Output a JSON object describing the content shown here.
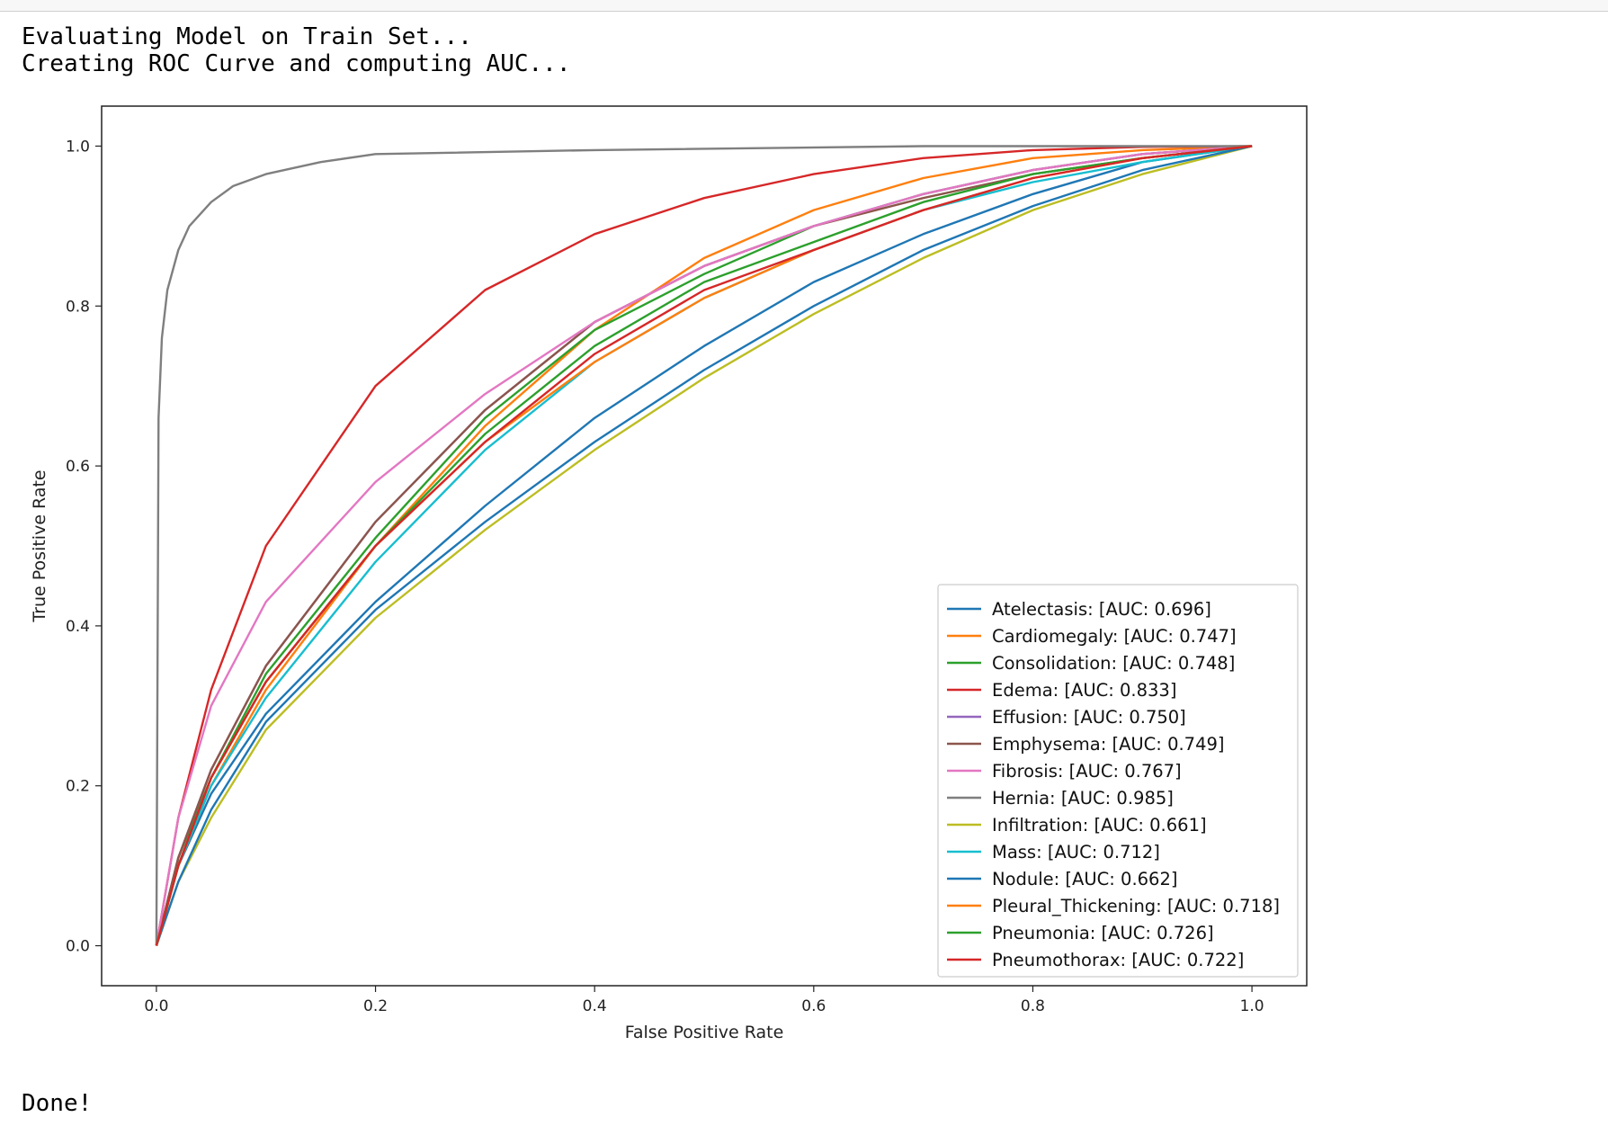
{
  "output": {
    "line1": "Evaluating Model on Train Set...",
    "line2": "Creating ROC Curve and computing AUC...",
    "done": "Done!"
  },
  "chart_data": {
    "type": "line",
    "title": "",
    "xlabel": "False Positive Rate",
    "ylabel": "True Positive Rate",
    "xlim": [
      -0.05,
      1.05
    ],
    "ylim": [
      -0.05,
      1.05
    ],
    "xticks": [
      "0.0",
      "0.2",
      "0.4",
      "0.6",
      "0.8",
      "1.0"
    ],
    "yticks": [
      "0.0",
      "0.2",
      "0.4",
      "0.6",
      "0.8",
      "1.0"
    ],
    "grid": false,
    "legend_position": "lower-right",
    "series": [
      {
        "name": "Atelectasis: [AUC: 0.696]",
        "color": "#1f77b4",
        "x": [
          0,
          0.02,
          0.05,
          0.1,
          0.2,
          0.3,
          0.4,
          0.5,
          0.6,
          0.7,
          0.8,
          0.9,
          1.0
        ],
        "y": [
          0,
          0.1,
          0.19,
          0.29,
          0.43,
          0.55,
          0.66,
          0.75,
          0.83,
          0.89,
          0.94,
          0.98,
          1.0
        ]
      },
      {
        "name": "Cardiomegaly: [AUC: 0.747]",
        "color": "#ff7f0e",
        "x": [
          0,
          0.02,
          0.05,
          0.1,
          0.2,
          0.3,
          0.4,
          0.5,
          0.6,
          0.7,
          0.8,
          0.9,
          1.0
        ],
        "y": [
          0,
          0.1,
          0.2,
          0.32,
          0.5,
          0.65,
          0.77,
          0.86,
          0.92,
          0.96,
          0.985,
          0.995,
          1.0
        ]
      },
      {
        "name": "Consolidation: [AUC: 0.748]",
        "color": "#2ca02c",
        "x": [
          0,
          0.02,
          0.05,
          0.1,
          0.2,
          0.3,
          0.4,
          0.5,
          0.6,
          0.7,
          0.8,
          0.9,
          1.0
        ],
        "y": [
          0,
          0.11,
          0.21,
          0.34,
          0.51,
          0.66,
          0.77,
          0.84,
          0.9,
          0.94,
          0.97,
          0.99,
          1.0
        ]
      },
      {
        "name": "Edema: [AUC: 0.833]",
        "color": "#d62728",
        "x": [
          0,
          0.02,
          0.05,
          0.1,
          0.15,
          0.2,
          0.3,
          0.4,
          0.5,
          0.6,
          0.7,
          0.8,
          0.9,
          1.0
        ],
        "y": [
          0,
          0.16,
          0.32,
          0.5,
          0.6,
          0.7,
          0.82,
          0.89,
          0.935,
          0.965,
          0.985,
          0.995,
          0.999,
          1.0
        ]
      },
      {
        "name": "Effusion: [AUC: 0.750]",
        "color": "#9467bd",
        "x": [
          0,
          0.02,
          0.05,
          0.1,
          0.2,
          0.3,
          0.4,
          0.5,
          0.6,
          0.7,
          0.8,
          0.9,
          1.0
        ],
        "y": [
          0,
          0.11,
          0.22,
          0.35,
          0.53,
          0.67,
          0.78,
          0.85,
          0.9,
          0.94,
          0.97,
          0.99,
          1.0
        ]
      },
      {
        "name": "Emphysema: [AUC: 0.749]",
        "color": "#8c564b",
        "x": [
          0,
          0.02,
          0.05,
          0.1,
          0.2,
          0.3,
          0.4,
          0.5,
          0.6,
          0.7,
          0.8,
          0.9,
          1.0
        ],
        "y": [
          0,
          0.11,
          0.22,
          0.35,
          0.53,
          0.67,
          0.78,
          0.85,
          0.9,
          0.935,
          0.965,
          0.985,
          1.0
        ]
      },
      {
        "name": "Fibrosis: [AUC: 0.767]",
        "color": "#e377c2",
        "x": [
          0,
          0.02,
          0.05,
          0.1,
          0.2,
          0.3,
          0.4,
          0.5,
          0.6,
          0.7,
          0.8,
          0.9,
          1.0
        ],
        "y": [
          0,
          0.16,
          0.3,
          0.43,
          0.58,
          0.69,
          0.78,
          0.85,
          0.9,
          0.94,
          0.97,
          0.99,
          1.0
        ]
      },
      {
        "name": "Hernia: [AUC: 0.985]",
        "color": "#7f7f7f",
        "x": [
          0,
          0.002,
          0.005,
          0.01,
          0.02,
          0.03,
          0.05,
          0.07,
          0.1,
          0.15,
          0.2,
          0.4,
          0.7,
          1.0
        ],
        "y": [
          0,
          0.66,
          0.76,
          0.82,
          0.87,
          0.9,
          0.93,
          0.95,
          0.965,
          0.98,
          0.99,
          0.995,
          1.0,
          1.0
        ]
      },
      {
        "name": "Infiltration: [AUC: 0.661]",
        "color": "#bcbd22",
        "x": [
          0,
          0.02,
          0.05,
          0.1,
          0.2,
          0.3,
          0.4,
          0.5,
          0.6,
          0.7,
          0.8,
          0.9,
          1.0
        ],
        "y": [
          0,
          0.08,
          0.16,
          0.27,
          0.41,
          0.52,
          0.62,
          0.71,
          0.79,
          0.86,
          0.92,
          0.965,
          1.0
        ]
      },
      {
        "name": "Mass: [AUC: 0.712]",
        "color": "#17becf",
        "x": [
          0,
          0.02,
          0.05,
          0.1,
          0.2,
          0.3,
          0.4,
          0.5,
          0.6,
          0.7,
          0.8,
          0.9,
          1.0
        ],
        "y": [
          0,
          0.1,
          0.2,
          0.31,
          0.48,
          0.62,
          0.73,
          0.81,
          0.87,
          0.92,
          0.955,
          0.98,
          1.0
        ]
      },
      {
        "name": "Nodule: [AUC: 0.662]",
        "color": "#1f77b4",
        "x": [
          0,
          0.02,
          0.05,
          0.1,
          0.2,
          0.3,
          0.4,
          0.5,
          0.6,
          0.7,
          0.8,
          0.9,
          1.0
        ],
        "y": [
          0,
          0.08,
          0.17,
          0.28,
          0.42,
          0.53,
          0.63,
          0.72,
          0.8,
          0.87,
          0.925,
          0.97,
          1.0
        ]
      },
      {
        "name": "Pleural_Thickening: [AUC: 0.718]",
        "color": "#ff7f0e",
        "x": [
          0,
          0.02,
          0.05,
          0.1,
          0.2,
          0.3,
          0.4,
          0.5,
          0.6,
          0.7,
          0.8,
          0.9,
          1.0
        ],
        "y": [
          0,
          0.1,
          0.21,
          0.33,
          0.5,
          0.63,
          0.73,
          0.81,
          0.87,
          0.92,
          0.96,
          0.985,
          1.0
        ]
      },
      {
        "name": "Pneumonia: [AUC: 0.726]",
        "color": "#2ca02c",
        "x": [
          0,
          0.02,
          0.05,
          0.1,
          0.2,
          0.3,
          0.4,
          0.5,
          0.6,
          0.7,
          0.8,
          0.9,
          1.0
        ],
        "y": [
          0,
          0.1,
          0.21,
          0.33,
          0.5,
          0.64,
          0.75,
          0.83,
          0.88,
          0.93,
          0.965,
          0.985,
          1.0
        ]
      },
      {
        "name": "Pneumothorax: [AUC: 0.722]",
        "color": "#d62728",
        "x": [
          0,
          0.02,
          0.05,
          0.1,
          0.2,
          0.3,
          0.4,
          0.5,
          0.6,
          0.7,
          0.8,
          0.9,
          1.0
        ],
        "y": [
          0,
          0.1,
          0.21,
          0.33,
          0.5,
          0.63,
          0.74,
          0.82,
          0.87,
          0.92,
          0.96,
          0.985,
          1.0
        ]
      }
    ]
  }
}
